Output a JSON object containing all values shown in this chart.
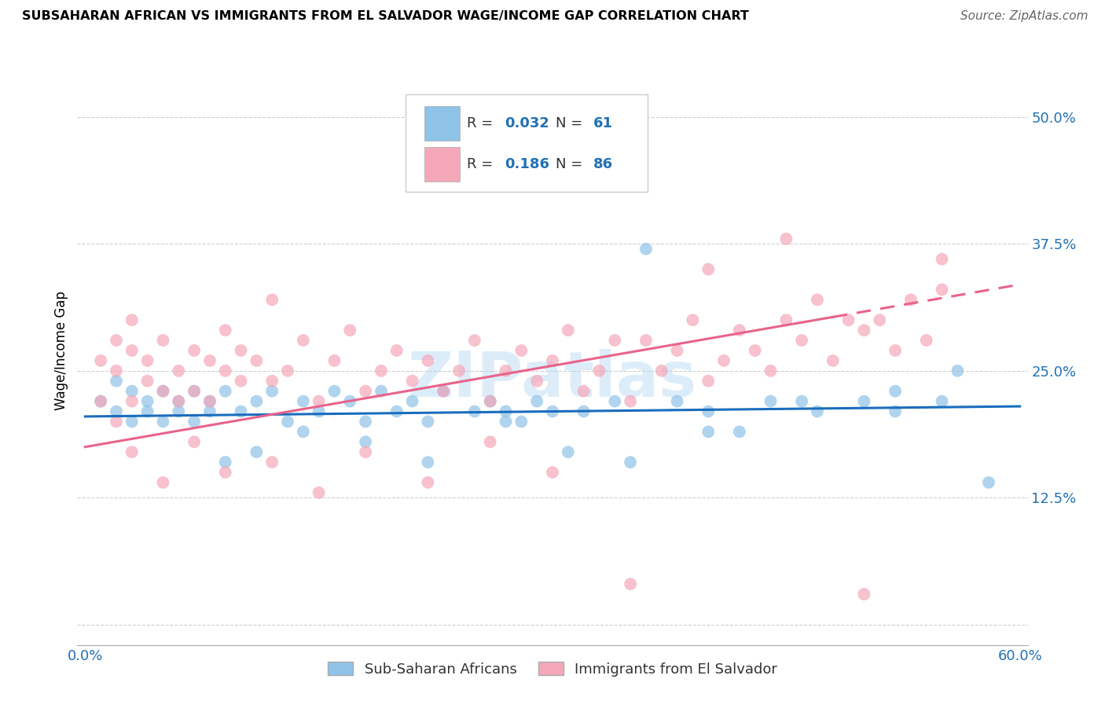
{
  "title": "SUBSAHARAN AFRICAN VS IMMIGRANTS FROM EL SALVADOR WAGE/INCOME GAP CORRELATION CHART",
  "source": "Source: ZipAtlas.com",
  "ylabel": "Wage/Income Gap",
  "xmin": 0.0,
  "xmax": 0.6,
  "ymin": -0.02,
  "ymax": 0.56,
  "yticks": [
    0.0,
    0.125,
    0.25,
    0.375,
    0.5
  ],
  "ytick_labels": [
    "",
    "12.5%",
    "25.0%",
    "37.5%",
    "50.0%"
  ],
  "blue_color": "#8fc3e8",
  "pink_color": "#f4a7b9",
  "trend_blue_color": "#1a6dbd",
  "trend_pink_color": "#e8638a",
  "watermark": "ZIPatlas",
  "legend1": "Sub-Saharan Africans",
  "legend2": "Immigrants from El Salvador",
  "blue_trend_start": 0.205,
  "blue_trend_end": 0.215,
  "pink_trend_start": 0.175,
  "pink_trend_end": 0.335
}
